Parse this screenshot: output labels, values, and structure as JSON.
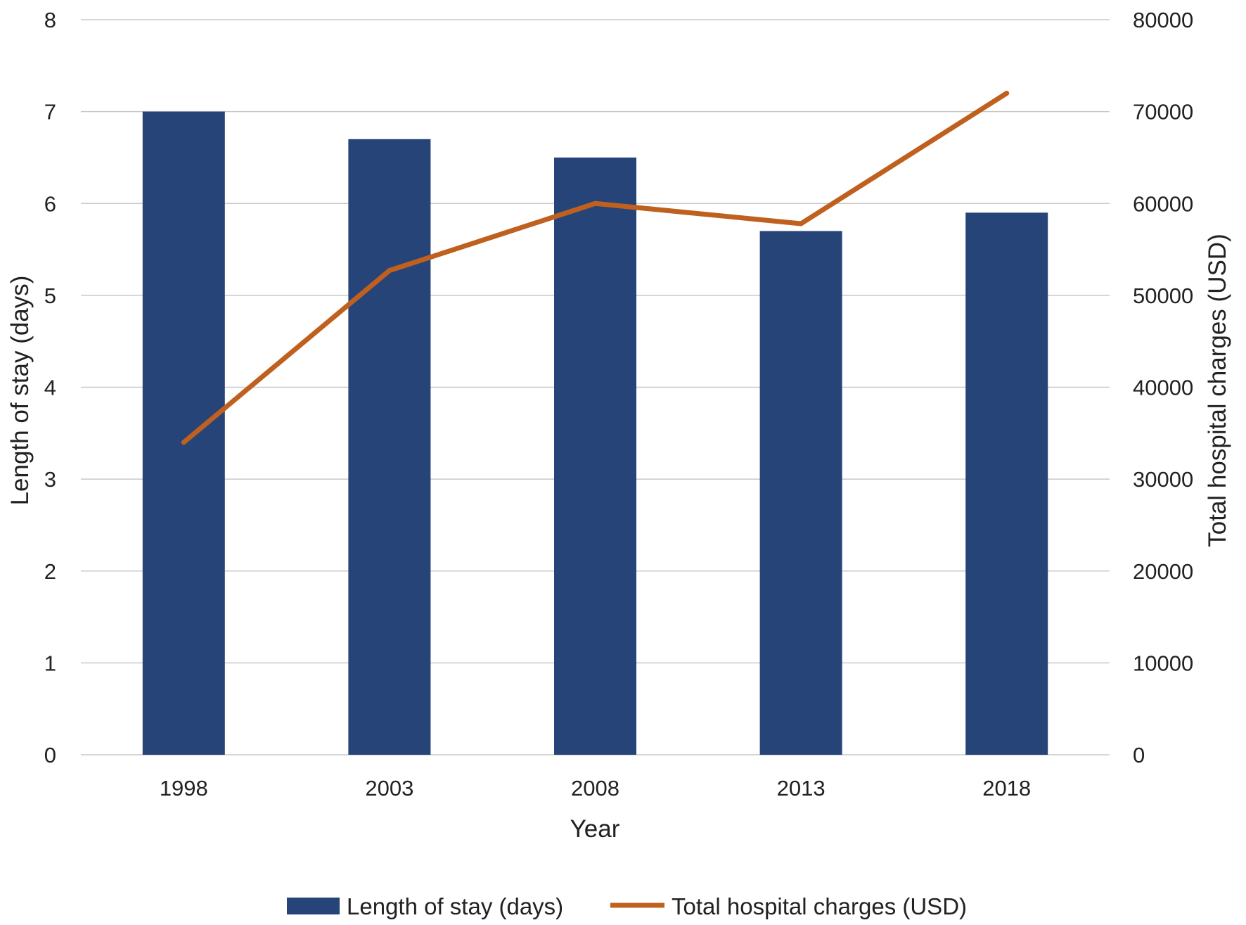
{
  "chart_data": {
    "type": "bar",
    "categories": [
      "1998",
      "2003",
      "2008",
      "2013",
      "2018"
    ],
    "series": [
      {
        "name": "Length of stay (days)",
        "type": "bar",
        "axis": "left",
        "values": [
          7.0,
          6.7,
          6.5,
          5.7,
          5.9
        ],
        "color": "#264478"
      },
      {
        "name": "Total hospital charges (USD)",
        "type": "line",
        "axis": "right",
        "values": [
          34000,
          52700,
          60000,
          57800,
          72000
        ],
        "color": "#C0601F"
      }
    ],
    "title": "",
    "xlabel": "Year",
    "ylabel": "Length of stay (days)",
    "y2label": "Total hospital charges (USD)",
    "ylim": [
      0,
      8
    ],
    "y2lim": [
      0,
      80000
    ],
    "yticks": [
      "0",
      "1",
      "2",
      "3",
      "4",
      "5",
      "6",
      "7",
      "8"
    ],
    "y2ticks": [
      "0",
      "10000",
      "20000",
      "30000",
      "40000",
      "50000",
      "60000",
      "70000",
      "80000"
    ],
    "grid": true,
    "legend": "bottom",
    "gridColor": "#C8C8C8"
  }
}
